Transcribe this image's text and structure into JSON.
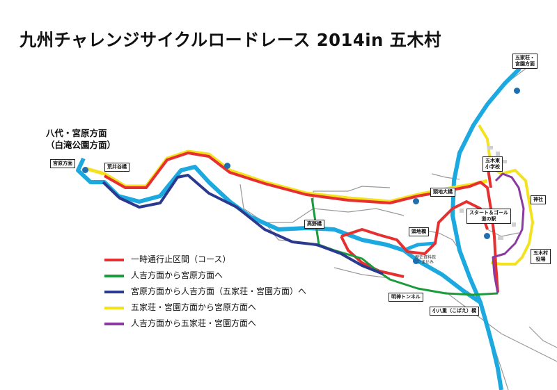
{
  "title": "九州チャレンジサイクルロードレース 2014in 五木村",
  "colors": {
    "course": "#e63030",
    "route_green": "#1a9b3c",
    "route_navy": "#2b3a8f",
    "route_yellow": "#f3e21c",
    "route_purple": "#8a3aa0",
    "river": "#1ba9e0",
    "road": "#9a9a9a"
  },
  "direction_label": "八代・宮原方面\n（白滝公園方面）",
  "labels": {
    "miyahara": "宮原方面",
    "arai": "荒井谷橋",
    "goka": "五家荘・\n宮園方面",
    "tochi_ohashi": "頭地大橋",
    "itsuki_higashi": "五木東\n小学校",
    "jinja": "神社",
    "start_goal": "スタート＆ゴール\n道の駅",
    "takano": "高野橋",
    "tochi": "頭地橋",
    "yakuba": "五木村\n役場",
    "myojin": "明神トンネル",
    "kobae": "小八重（こばえ）橋",
    "shiryokan": "歴史資料館\nやませみ"
  },
  "legend": [
    {
      "label": "一時通行止区間（コース）",
      "color": "#e63030"
    },
    {
      "label": "人吉方面から宮原方面へ",
      "color": "#1a9b3c"
    },
    {
      "label": "宮原方面から人吉方面（五家荘・宮園方面）へ",
      "color": "#2b3a8f"
    },
    {
      "label": "五家荘・宮園方面から宮原方面へ",
      "color": "#f3e21c"
    },
    {
      "label": "人吉方面から五家荘・宮園方面へ",
      "color": "#8a3aa0"
    }
  ]
}
